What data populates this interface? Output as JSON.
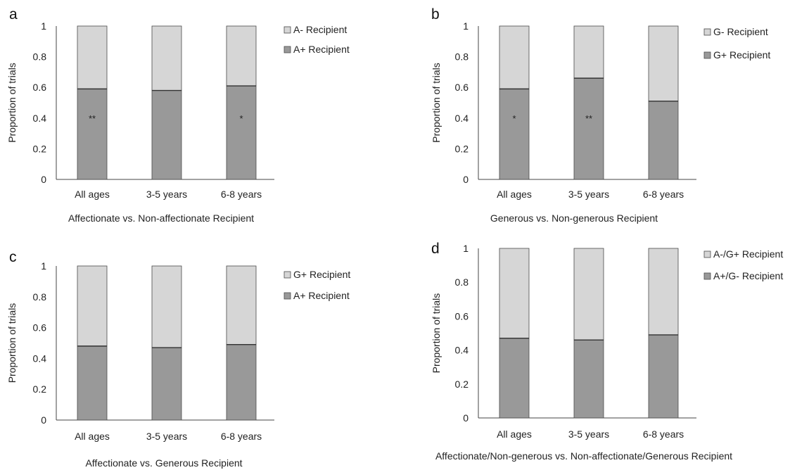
{
  "colors": {
    "upper": "#d6d6d6",
    "lower": "#999999",
    "edge": "#4a4a4a",
    "axis": "#444444"
  },
  "chart_data": [
    {
      "panel": "a",
      "type": "bar",
      "stacked": true,
      "categories": [
        "All ages",
        "3-5 years",
        "6-8 years"
      ],
      "xlabel": "Affectionate vs. Non-affectionate Recipient",
      "ylabel": "Proportion of trials",
      "ylim": [
        0,
        1
      ],
      "yticks": [
        "0",
        "0.2",
        "0.4",
        "0.6",
        "0.8",
        "1"
      ],
      "legend_position": "top-right",
      "series": [
        {
          "name": "A+ Recipient",
          "values": [
            0.59,
            0.58,
            0.61
          ]
        },
        {
          "name": "A- Recipient",
          "values": [
            0.41,
            0.42,
            0.39
          ]
        }
      ],
      "annotations": [
        "**",
        "",
        "*"
      ]
    },
    {
      "panel": "b",
      "type": "bar",
      "stacked": true,
      "categories": [
        "All ages",
        "3-5 years",
        "6-8 years"
      ],
      "xlabel": "Generous vs. Non-generous Recipient",
      "ylabel": "Proportion of trials",
      "ylim": [
        0,
        1
      ],
      "yticks": [
        "0",
        "0.2",
        "0.4",
        "0.6",
        "0.8",
        "1"
      ],
      "legend_position": "top-right",
      "series": [
        {
          "name": "G+ Recipient",
          "values": [
            0.59,
            0.66,
            0.51
          ]
        },
        {
          "name": "G- Recipient",
          "values": [
            0.41,
            0.34,
            0.49
          ]
        }
      ],
      "annotations": [
        "*",
        "**",
        ""
      ]
    },
    {
      "panel": "c",
      "type": "bar",
      "stacked": true,
      "categories": [
        "All ages",
        "3-5 years",
        "6-8 years"
      ],
      "xlabel": "Affectionate vs. Generous Recipient",
      "ylabel": "Proportion of trials",
      "ylim": [
        0,
        1
      ],
      "yticks": [
        "0",
        "0.2",
        "0.4",
        "0.6",
        "0.8",
        "1"
      ],
      "legend_position": "top-right",
      "series": [
        {
          "name": "A+ Recipient",
          "values": [
            0.48,
            0.47,
            0.49
          ]
        },
        {
          "name": "G+ Recipient",
          "values": [
            0.52,
            0.53,
            0.51
          ]
        }
      ],
      "annotations": [
        "",
        "",
        ""
      ]
    },
    {
      "panel": "d",
      "type": "bar",
      "stacked": true,
      "categories": [
        "All ages",
        "3-5 years",
        "6-8 years"
      ],
      "xlabel": "Affectionate/Non-generous vs. Non-affectionate/Generous Recipient",
      "ylabel": "Proportion of trials",
      "ylim": [
        0,
        1
      ],
      "yticks": [
        "0",
        "0.2",
        "0.4",
        "0.6",
        "0.8",
        "1"
      ],
      "legend_position": "top-right",
      "series": [
        {
          "name": "A+/G- Recipient",
          "values": [
            0.47,
            0.46,
            0.49
          ]
        },
        {
          "name": "A-/G+ Recipient",
          "values": [
            0.53,
            0.54,
            0.51
          ]
        }
      ],
      "annotations": [
        "",
        "",
        ""
      ]
    }
  ]
}
